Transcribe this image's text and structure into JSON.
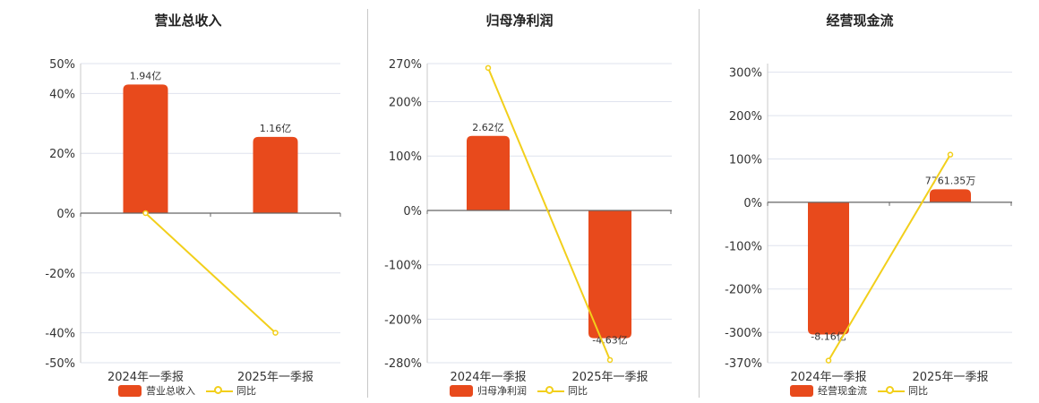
{
  "chart_data": [
    {
      "type": "bar",
      "title": "营业总收入",
      "categories": [
        "2024年一季报",
        "2025年一季报"
      ],
      "bar_labels": [
        "1.94亿",
        "1.16亿"
      ],
      "ylim": [
        -50,
        50
      ],
      "yticks": [
        50,
        40,
        20,
        0,
        -20,
        -40,
        -50
      ],
      "ytick_labels": [
        "50%",
        "40%",
        "20%",
        "0%",
        "-20%",
        "-40%",
        "-50%"
      ],
      "series": [
        {
          "name": "营业总收入",
          "type": "bar",
          "values": [
            43,
            25.5
          ]
        },
        {
          "name": "同比",
          "type": "line",
          "values": [
            0,
            -40
          ]
        }
      ],
      "grid": true,
      "legend": "bottom"
    },
    {
      "type": "bar",
      "title": "归母净利润",
      "categories": [
        "2024年一季报",
        "2025年一季报"
      ],
      "bar_labels": [
        "2.62亿",
        "-4.63亿"
      ],
      "ylim": [
        -280,
        270
      ],
      "yticks": [
        270,
        200,
        100,
        0,
        -100,
        -200,
        -280
      ],
      "ytick_labels": [
        "270%",
        "200%",
        "100%",
        "0%",
        "-100%",
        "-200%",
        "-280%"
      ],
      "series": [
        {
          "name": "归母净利润",
          "type": "bar",
          "values": [
            137,
            -235
          ]
        },
        {
          "name": "同比",
          "type": "line",
          "values": [
            262,
            -275
          ]
        }
      ],
      "grid": true,
      "legend": "bottom"
    },
    {
      "type": "bar",
      "title": "经营现金流",
      "categories": [
        "2024年一季报",
        "2025年一季报"
      ],
      "bar_labels": [
        "-8.16亿",
        "7761.35万"
      ],
      "ylim": [
        -370,
        320
      ],
      "yticks": [
        300,
        200,
        100,
        0,
        -100,
        -200,
        -300,
        -370
      ],
      "ytick_labels": [
        "300%",
        "200%",
        "100%",
        "0%",
        "-100%",
        "-200%",
        "-300%",
        "-370%"
      ],
      "series": [
        {
          "name": "经营现金流",
          "type": "bar",
          "values": [
            -305,
            30
          ]
        },
        {
          "name": "同比",
          "type": "line",
          "values": [
            -365,
            110
          ]
        }
      ],
      "grid": true,
      "legend": "bottom"
    }
  ],
  "colors": {
    "bar": "#e84a1c",
    "line": "#f2cf1b",
    "grid": "#dfe3ee",
    "axis": "#666666"
  }
}
